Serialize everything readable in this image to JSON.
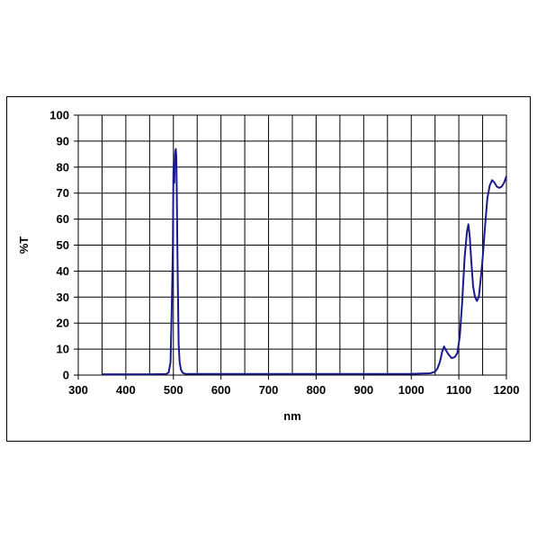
{
  "chart_data": {
    "type": "line",
    "xlabel": "nm",
    "ylabel": "%T",
    "xlim": [
      300,
      1200
    ],
    "ylim": [
      0,
      100
    ],
    "x_ticks": [
      300,
      400,
      500,
      600,
      700,
      800,
      900,
      1000,
      1100,
      1200
    ],
    "y_ticks": [
      0,
      10,
      20,
      30,
      40,
      50,
      60,
      70,
      80,
      90,
      100
    ],
    "x_grid_step": 50,
    "y_grid_step": 10,
    "grid": true,
    "legend": "none",
    "line_color": "#1a1a8c",
    "series": [
      {
        "points": [
          [
            350,
            0.3
          ],
          [
            450,
            0.3
          ],
          [
            485,
            0.4
          ],
          [
            490,
            1.0
          ],
          [
            494,
            5
          ],
          [
            497,
            30
          ],
          [
            499,
            50
          ],
          [
            500,
            78
          ],
          [
            501,
            82
          ],
          [
            502,
            74
          ],
          [
            503,
            84
          ],
          [
            504,
            86
          ],
          [
            505,
            87
          ],
          [
            506,
            84
          ],
          [
            507,
            72
          ],
          [
            508,
            55
          ],
          [
            509,
            40
          ],
          [
            510,
            25
          ],
          [
            511,
            12
          ],
          [
            513,
            5
          ],
          [
            516,
            2
          ],
          [
            520,
            0.8
          ],
          [
            525,
            0.5
          ],
          [
            560,
            0.4
          ],
          [
            700,
            0.4
          ],
          [
            900,
            0.4
          ],
          [
            1000,
            0.5
          ],
          [
            1040,
            0.7
          ],
          [
            1050,
            1.3
          ],
          [
            1055,
            2.5
          ],
          [
            1060,
            5
          ],
          [
            1065,
            9
          ],
          [
            1069,
            11
          ],
          [
            1073,
            9.5
          ],
          [
            1078,
            8
          ],
          [
            1085,
            6.5
          ],
          [
            1092,
            7
          ],
          [
            1097,
            8.5
          ],
          [
            1102,
            15
          ],
          [
            1107,
            28
          ],
          [
            1112,
            45
          ],
          [
            1117,
            55
          ],
          [
            1120,
            58
          ],
          [
            1123,
            53
          ],
          [
            1126,
            44
          ],
          [
            1130,
            34
          ],
          [
            1134,
            30
          ],
          [
            1138,
            28.5
          ],
          [
            1142,
            30
          ],
          [
            1146,
            37
          ],
          [
            1150,
            45
          ],
          [
            1155,
            57
          ],
          [
            1160,
            68
          ],
          [
            1165,
            73
          ],
          [
            1170,
            75
          ],
          [
            1175,
            74
          ],
          [
            1180,
            72.5
          ],
          [
            1185,
            72
          ],
          [
            1190,
            72.5
          ],
          [
            1195,
            74
          ],
          [
            1200,
            76.5
          ]
        ]
      }
    ]
  }
}
